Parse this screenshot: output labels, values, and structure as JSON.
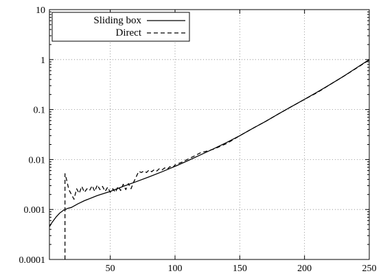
{
  "chart_data": {
    "type": "line",
    "title": "",
    "xlabel": "",
    "ylabel": "",
    "xlim": [
      3,
      250
    ],
    "ylim": [
      0.0001,
      10
    ],
    "yscale": "log",
    "grid": true,
    "legend_position": "top-left",
    "x_ticks": [
      {
        "value": 50,
        "label": "50"
      },
      {
        "value": 100,
        "label": "100"
      },
      {
        "value": 150,
        "label": "150"
      },
      {
        "value": 200,
        "label": "200"
      },
      {
        "value": 250,
        "label": "250"
      }
    ],
    "y_ticks": [
      {
        "value": 0.0001,
        "label": "0.0001"
      },
      {
        "value": 0.001,
        "label": "0.001"
      },
      {
        "value": 0.01,
        "label": "0.01"
      },
      {
        "value": 0.1,
        "label": "0.1"
      },
      {
        "value": 1,
        "label": "1"
      },
      {
        "value": 10,
        "label": "10"
      }
    ],
    "series": [
      {
        "name": "Sliding box",
        "style": "solid",
        "color": "#000000",
        "x": [
          3,
          5,
          8,
          11,
          14,
          17,
          20,
          25,
          30,
          40,
          50,
          60,
          70,
          80,
          90,
          100,
          110,
          120,
          130,
          140,
          150,
          160,
          170,
          180,
          190,
          200,
          210,
          220,
          230,
          240,
          250
        ],
        "y": [
          0.00045,
          0.00055,
          0.0007,
          0.00085,
          0.00097,
          0.00105,
          0.0011,
          0.0013,
          0.0015,
          0.0019,
          0.0023,
          0.0029,
          0.0036,
          0.0045,
          0.0057,
          0.0073,
          0.0095,
          0.0125,
          0.0165,
          0.022,
          0.03,
          0.042,
          0.058,
          0.082,
          0.115,
          0.16,
          0.225,
          0.32,
          0.46,
          0.68,
          1.0
        ]
      },
      {
        "name": "Direct",
        "style": "dashed",
        "color": "#000000",
        "x": [
          15,
          15,
          16,
          18,
          20,
          22,
          24,
          26,
          28,
          30,
          32,
          34,
          36,
          38,
          40,
          42,
          44,
          46,
          48,
          50,
          52,
          54,
          56,
          58,
          60,
          62,
          64,
          66,
          68,
          70,
          72,
          74,
          76,
          78,
          80,
          82,
          84,
          86,
          88,
          90,
          92,
          94,
          96,
          98,
          100,
          105,
          110,
          115,
          120,
          125,
          130,
          140,
          150,
          160,
          170,
          180,
          190,
          200,
          210,
          220,
          230,
          240,
          250
        ],
        "y": [
          0.0001,
          0.0052,
          0.0042,
          0.0025,
          0.002,
          0.0016,
          0.0026,
          0.0021,
          0.0029,
          0.0022,
          0.0026,
          0.0024,
          0.003,
          0.0023,
          0.0031,
          0.0025,
          0.0029,
          0.0023,
          0.0028,
          0.0022,
          0.0026,
          0.0022,
          0.0029,
          0.0024,
          0.0032,
          0.0025,
          0.0033,
          0.0026,
          0.0035,
          0.0045,
          0.0058,
          0.0055,
          0.0059,
          0.0055,
          0.0062,
          0.0057,
          0.0063,
          0.0059,
          0.0066,
          0.0062,
          0.0068,
          0.0064,
          0.0072,
          0.0068,
          0.0078,
          0.0088,
          0.0102,
          0.0118,
          0.0138,
          0.0148,
          0.0162,
          0.021,
          0.03,
          0.042,
          0.058,
          0.082,
          0.115,
          0.16,
          0.22,
          0.32,
          0.46,
          0.67,
          0.98
        ]
      }
    ]
  }
}
